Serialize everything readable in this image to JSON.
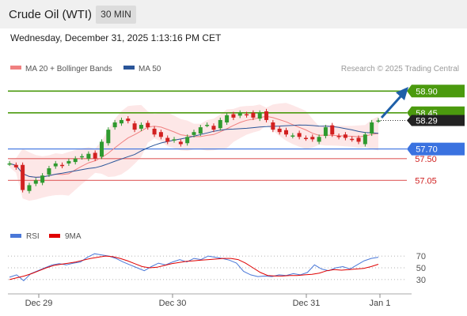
{
  "header": {
    "title": "Crude Oil (WTI)",
    "timeframe": "30 MIN"
  },
  "datetime": "Wednesday, December 31, 2025 1:13:16 PM CET",
  "legend": [
    {
      "label": "MA 20 + Bollinger Bands",
      "color": "#f08080"
    },
    {
      "label": "MA 50",
      "color": "#2a5599"
    }
  ],
  "credit": "Research © 2025 Trading Central",
  "chart_data": [
    {
      "type": "line",
      "title": "Crude Oil (WTI) 30 MIN",
      "x_ticks": [
        "Dec 29",
        "Dec 30",
        "Dec 31",
        "Jan 1"
      ],
      "ylim": [
        56.4,
        59.15
      ],
      "levels": [
        {
          "label": "58.90",
          "value": 58.9,
          "kind": "resistance",
          "color": "#4b9a0e"
        },
        {
          "label": "58.45",
          "value": 58.45,
          "kind": "resistance",
          "color": "#4b9a0e"
        },
        {
          "label": "57.70",
          "value": 57.7,
          "kind": "pivot",
          "color": "#3a72e0"
        },
        {
          "label": "57.50",
          "value": 57.5,
          "kind": "support",
          "color": "#e06060"
        },
        {
          "label": "57.05",
          "value": 57.05,
          "kind": "support",
          "color": "#e06060"
        }
      ],
      "last_price": {
        "label": "58.29",
        "value": 58.29
      },
      "price_series": [
        57.4,
        57.32,
        56.85,
        56.95,
        57.05,
        57.15,
        57.3,
        57.4,
        57.35,
        57.45,
        57.5,
        57.55,
        57.6,
        57.5,
        57.85,
        58.1,
        58.25,
        58.3,
        58.28,
        58.1,
        58.2,
        58.15,
        58.0,
        57.95,
        57.85,
        57.9,
        57.8,
        57.95,
        58.05,
        58.15,
        58.2,
        58.1,
        58.3,
        58.4,
        58.35,
        58.45,
        58.4,
        58.35,
        58.45,
        58.3,
        58.1,
        58.05,
        58.0,
        57.98,
        57.95,
        57.92,
        57.9,
        57.95,
        58.15,
        58.0,
        57.95,
        57.93,
        57.9,
        57.85,
        58.0,
        58.25,
        58.29
      ]
    },
    {
      "type": "line",
      "title": "RSI",
      "ylim": [
        15,
        85
      ],
      "y_ticks": [
        70,
        50,
        30
      ],
      "series": [
        {
          "name": "RSI",
          "color": "#4a78d8",
          "values": [
            34,
            38,
            28,
            40,
            45,
            50,
            55,
            57,
            55,
            58,
            60,
            68,
            74,
            72,
            70,
            66,
            60,
            55,
            50,
            45,
            52,
            58,
            55,
            60,
            64,
            60,
            66,
            64,
            70,
            68,
            66,
            63,
            58,
            44,
            38,
            35,
            36,
            35,
            38,
            37,
            40,
            38,
            42,
            55,
            48,
            45,
            50,
            52,
            48,
            55,
            62,
            66,
            68
          ]
        },
        {
          "name": "9MA",
          "color": "#e00000",
          "values": [
            30,
            33,
            36,
            40,
            45,
            50,
            54,
            56,
            58,
            60,
            63,
            66,
            68,
            70,
            69,
            66,
            62,
            57,
            52,
            50,
            51,
            54,
            57,
            59,
            61,
            62,
            63,
            64,
            65,
            66,
            66,
            64,
            58,
            50,
            42,
            37,
            36,
            36,
            37,
            37,
            38,
            39,
            41,
            45,
            47,
            46,
            47,
            48,
            49,
            52,
            56
          ]
        }
      ]
    }
  ]
}
